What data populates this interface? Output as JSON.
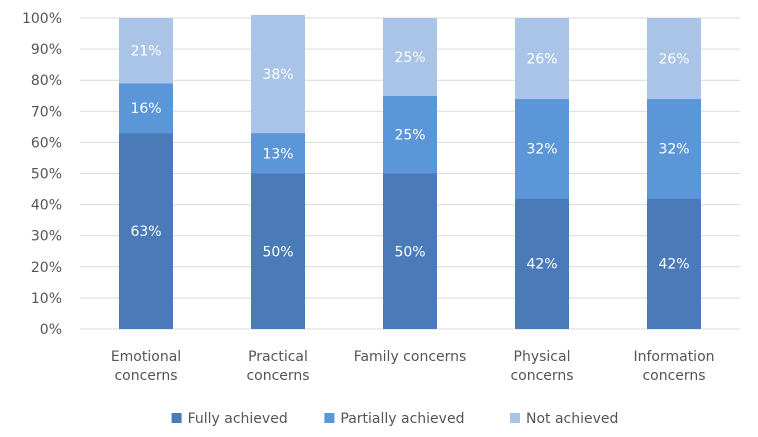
{
  "chart_data": {
    "type": "bar",
    "stacked": true,
    "categories": [
      [
        "Emotional",
        "concerns"
      ],
      [
        "Practical",
        "concerns"
      ],
      [
        "Family concerns"
      ],
      [
        "Physical",
        "concerns"
      ],
      [
        "Information",
        "concerns"
      ]
    ],
    "series": [
      {
        "name": "Fully achieved",
        "color": "#4a7ab7",
        "values": [
          63,
          50,
          50,
          42,
          42
        ],
        "labels": [
          "63%",
          "50%",
          "50%",
          "42%",
          "42%"
        ]
      },
      {
        "name": "Partially achieved",
        "color": "#5b96d8",
        "values": [
          16,
          13,
          25,
          32,
          32
        ],
        "labels": [
          "16%",
          "13%",
          "25%",
          "32%",
          "32%"
        ]
      },
      {
        "name": "Not achieved",
        "color": "#a9c4e6",
        "values": [
          21,
          38,
          25,
          26,
          26
        ],
        "labels": [
          "21%",
          "38%",
          "25%",
          "26%",
          "26%"
        ]
      }
    ],
    "yticks": [
      "0%",
      "10%",
      "20%",
      "30%",
      "40%",
      "50%",
      "60%",
      "70%",
      "80%",
      "90%",
      "100%"
    ],
    "ylim": [
      0,
      100
    ],
    "grid": true,
    "legend": "bottom",
    "title": "",
    "xlabel": "",
    "ylabel": ""
  }
}
